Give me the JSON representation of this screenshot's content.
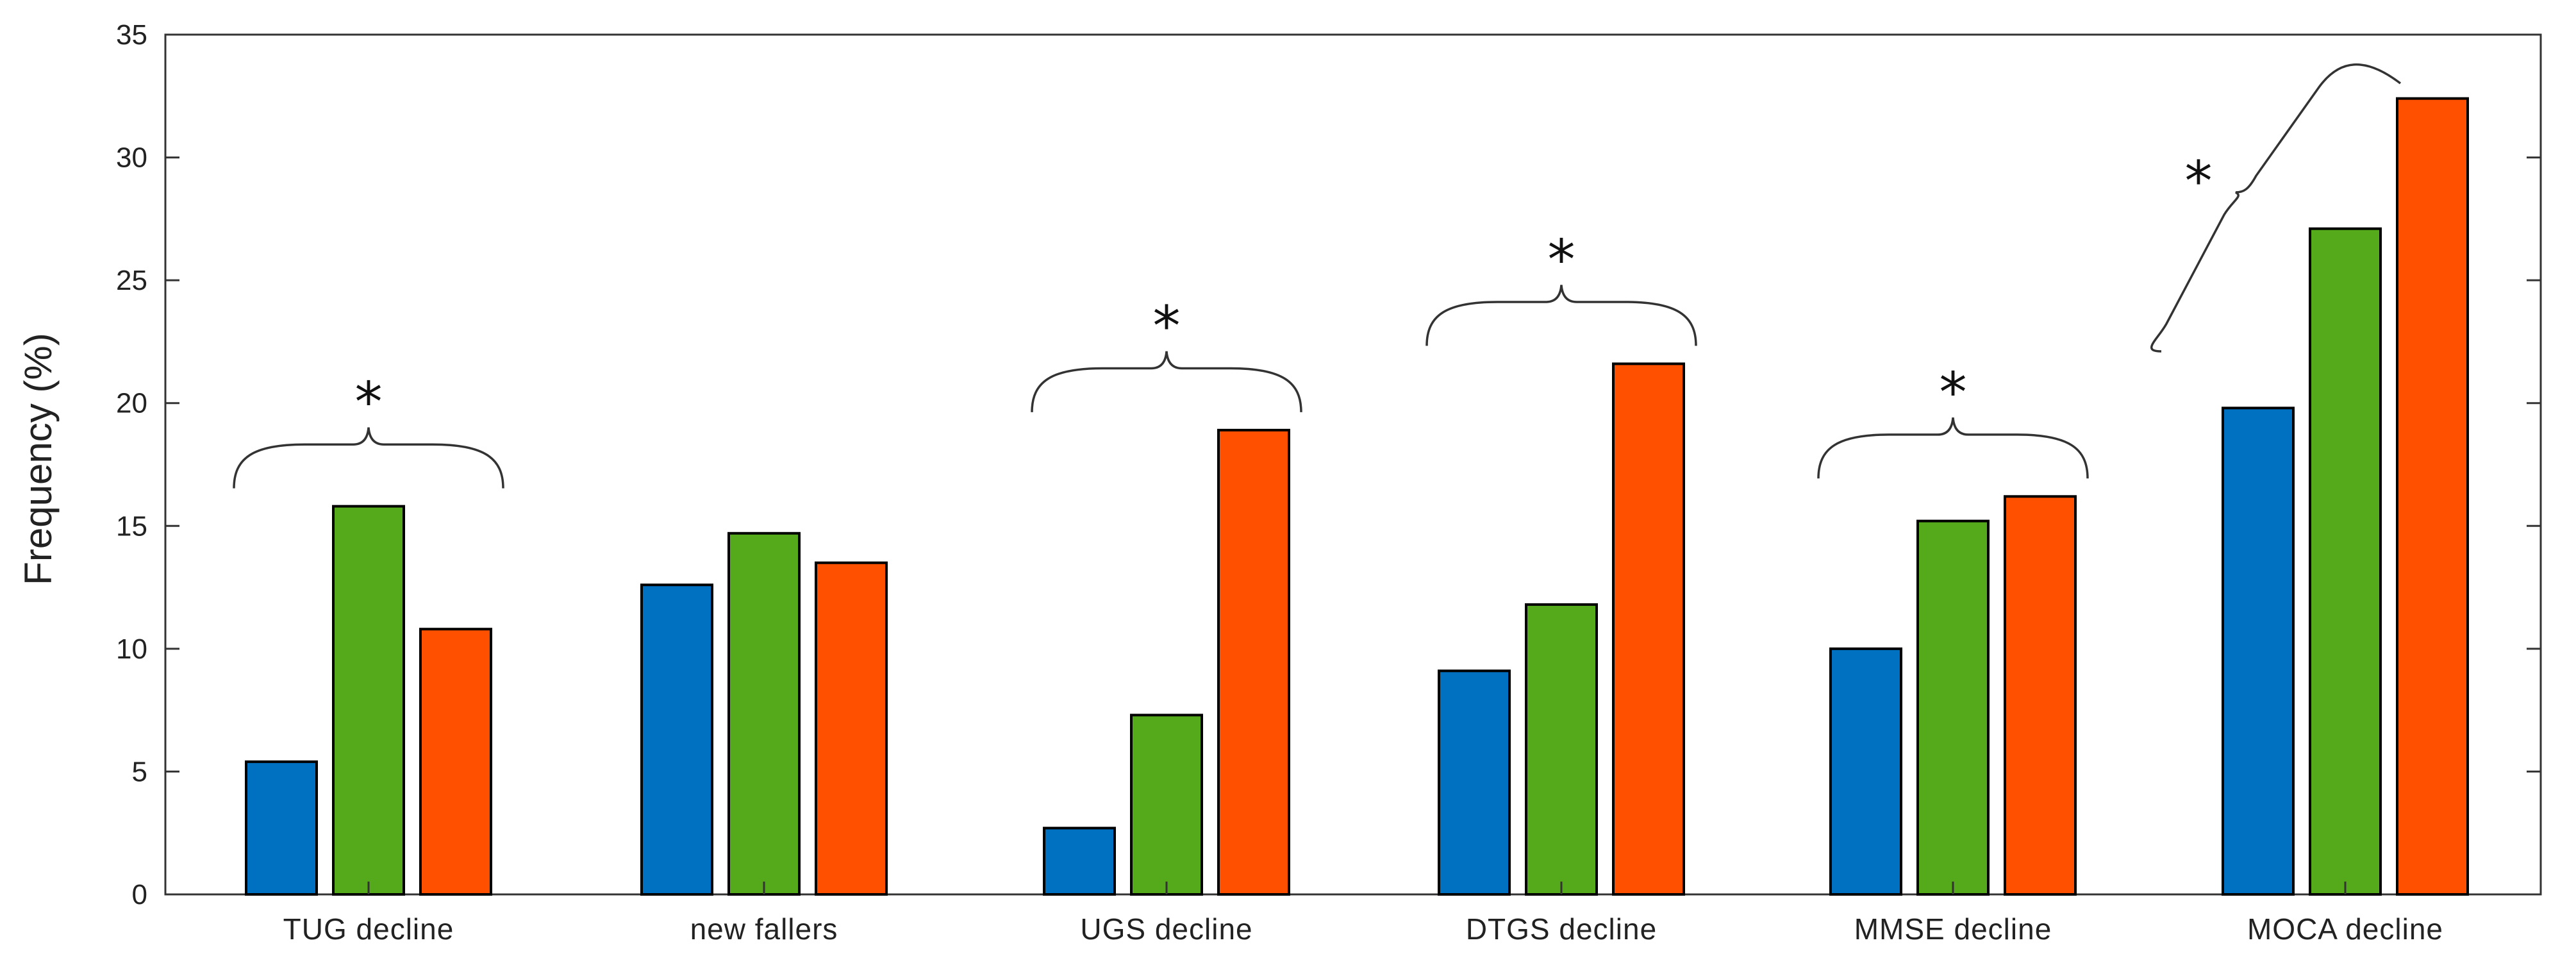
{
  "chart_data": {
    "type": "bar",
    "title": "",
    "xlabel": "",
    "ylabel": "Frequency (%)",
    "ylim": [
      0,
      35
    ],
    "yticks": [
      0,
      5,
      10,
      15,
      20,
      25,
      30,
      35
    ],
    "categories": [
      "TUG decline",
      "new fallers",
      "UGS decline",
      "DTGS decline",
      "MMSE decline",
      "MOCA decline"
    ],
    "series": [
      {
        "name": "series-1",
        "color": "#0070C0",
        "values": [
          5.4,
          12.6,
          2.7,
          9.1,
          10.0,
          19.8
        ]
      },
      {
        "name": "series-2",
        "color": "#55AA1B",
        "values": [
          15.8,
          14.7,
          7.3,
          11.8,
          15.2,
          27.1
        ]
      },
      {
        "name": "series-3",
        "color": "#FF5000",
        "values": [
          10.8,
          13.5,
          18.9,
          21.6,
          16.2,
          32.4
        ]
      }
    ],
    "annotations": [
      {
        "category": "TUG decline",
        "text": "*"
      },
      {
        "category": "UGS decline",
        "text": "*"
      },
      {
        "category": "DTGS decline",
        "text": "*"
      },
      {
        "category": "MMSE decline",
        "text": "*"
      },
      {
        "category": "MOCA decline",
        "text": "*"
      }
    ],
    "grid": false,
    "legend": "none"
  }
}
